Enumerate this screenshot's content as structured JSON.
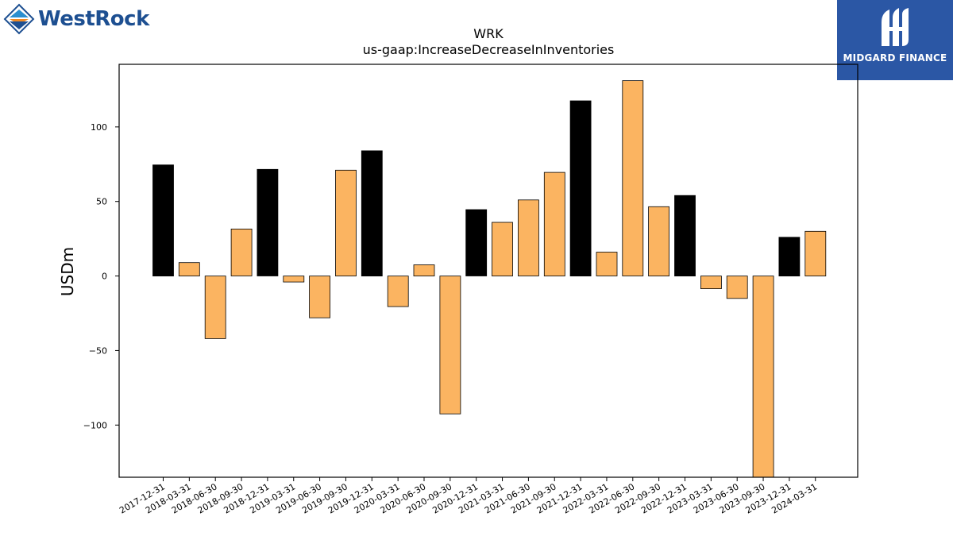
{
  "brand_left": {
    "name": "WestRock",
    "icon": "westrock-diamond-logo-icon",
    "color": "#1d4f91"
  },
  "brand_right": {
    "name": "MIDGARD FINANCE",
    "icon": "midgard-finance-logo-icon",
    "background": "#2b57a5"
  },
  "chart_data": {
    "type": "bar",
    "title": "WRK",
    "subtitle": "us-gaap:IncreaseDecreaseInInventories",
    "xlabel": "",
    "ylabel": "USDm",
    "ylim": [
      -135,
      142
    ],
    "yticks": [
      -100,
      -50,
      0,
      50,
      100
    ],
    "grid": false,
    "colors": {
      "fiscal_year_end": "#000000",
      "quarter": "#fbb461"
    },
    "categories": [
      "2017-12-31",
      "2018-03-31",
      "2018-06-30",
      "2018-09-30",
      "2018-12-31",
      "2019-03-31",
      "2019-06-30",
      "2019-09-30",
      "2019-12-31",
      "2020-03-31",
      "2020-06-30",
      "2020-09-30",
      "2020-12-31",
      "2021-03-31",
      "2021-06-30",
      "2021-09-30",
      "2021-12-31",
      "2022-03-31",
      "2022-06-30",
      "2022-09-30",
      "2022-12-31",
      "2023-03-31",
      "2023-06-30",
      "2023-09-30",
      "2023-12-31",
      "2024-03-31"
    ],
    "values": [
      74.5,
      9,
      -42,
      31.5,
      71.5,
      -4,
      -28,
      71,
      84,
      -20.5,
      7.5,
      -92.5,
      44.5,
      36,
      51,
      69.5,
      117.5,
      16,
      131,
      46.5,
      54,
      -8.5,
      -15,
      -135,
      26,
      30
    ],
    "bar_colors": [
      "#000000",
      "#fbb461",
      "#fbb461",
      "#fbb461",
      "#000000",
      "#fbb461",
      "#fbb461",
      "#fbb461",
      "#000000",
      "#fbb461",
      "#fbb461",
      "#fbb461",
      "#000000",
      "#fbb461",
      "#fbb461",
      "#fbb461",
      "#000000",
      "#fbb461",
      "#fbb461",
      "#fbb461",
      "#000000",
      "#fbb461",
      "#fbb461",
      "#fbb461",
      "#000000",
      "#fbb461"
    ]
  }
}
